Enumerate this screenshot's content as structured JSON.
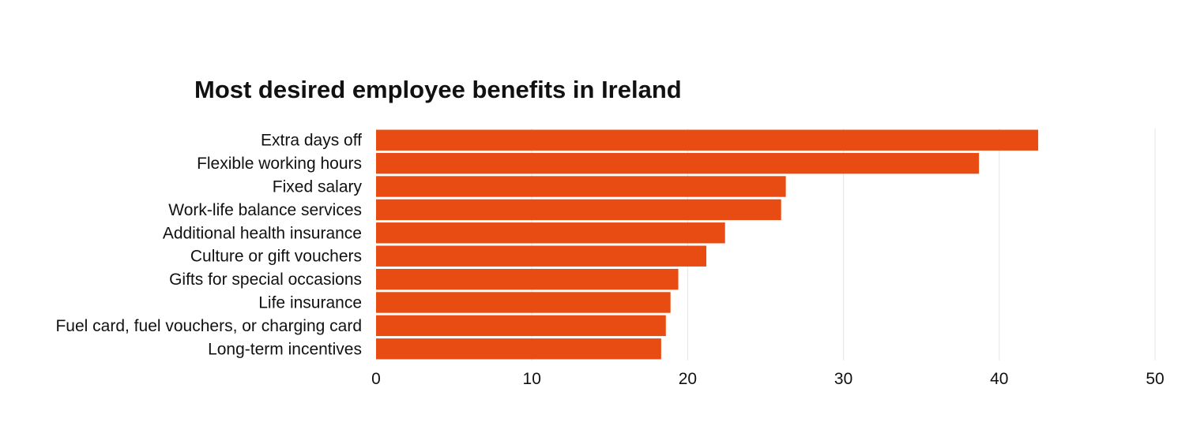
{
  "chart_data": {
    "type": "bar",
    "orientation": "horizontal",
    "title": "Most desired employee benefits in Ireland",
    "xlabel": "",
    "ylabel": "",
    "categories": [
      "Extra days off",
      "Flexible working hours",
      "Fixed salary",
      "Work-life balance services",
      "Additional health insurance",
      "Culture or gift vouchers",
      "Gifts for special occasions",
      "Life insurance",
      "Fuel card, fuel vouchers, or charging card",
      "Long-term incentives"
    ],
    "values": [
      42.5,
      38.7,
      26.3,
      26.0,
      22.4,
      21.2,
      19.4,
      18.9,
      18.6,
      18.3
    ],
    "xlim": [
      0,
      50
    ],
    "xticks": [
      "0",
      "10",
      "20",
      "30",
      "40",
      "50"
    ],
    "grid": true,
    "legend": "none",
    "colors": {
      "bar": "#e84c12",
      "grid": "#e6e6e6",
      "text": "#111111"
    }
  }
}
